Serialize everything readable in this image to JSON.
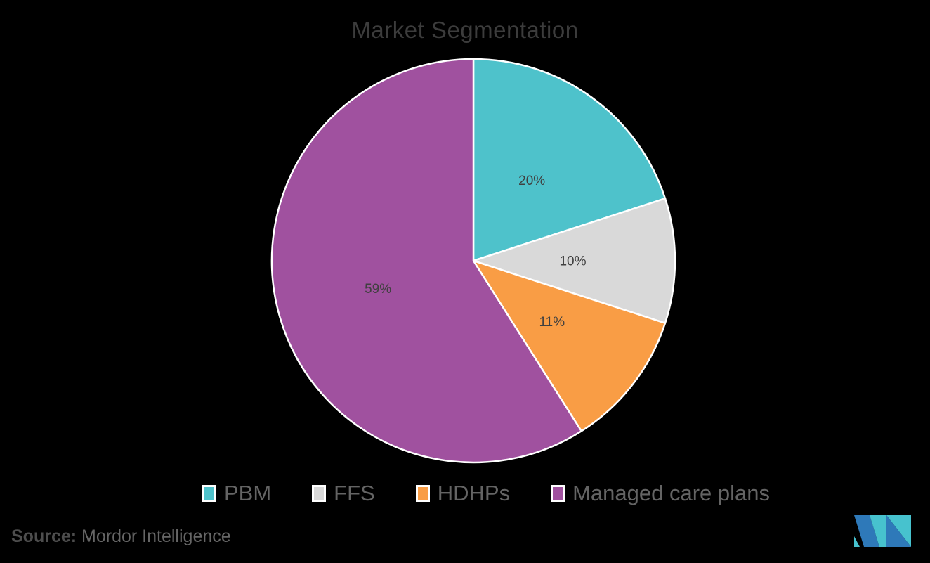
{
  "chart_data": {
    "type": "pie",
    "title": "Market Segmentation",
    "segments": [
      {
        "label": "PBM",
        "value": 20,
        "color": "#4ec2cb"
      },
      {
        "label": "FFS",
        "value": 10,
        "color": "#d9d9d9"
      },
      {
        "label": "HDHPs",
        "value": 11,
        "color": "#f99d45"
      },
      {
        "label": "Managed care plans",
        "value": 59,
        "color": "#a0519f"
      }
    ],
    "data_labels": [
      "20%",
      "10%",
      "11%",
      "59%"
    ],
    "start_angle_deg": 0,
    "direction": "clockwise",
    "slice_border_color": "#ffffff",
    "data_label_color": "#404040",
    "legend_position": "bottom",
    "legend_swatch_border_color": "#ffffff",
    "title_color": "#3c3c3c",
    "background": "#000000"
  },
  "source": {
    "label": "Source:",
    "text": "Mordor Intelligence"
  },
  "logo": {
    "name": "mordor-intelligence-logo",
    "colors": {
      "dark_blue": "#2e79b9",
      "teal": "#47c2ce"
    }
  }
}
